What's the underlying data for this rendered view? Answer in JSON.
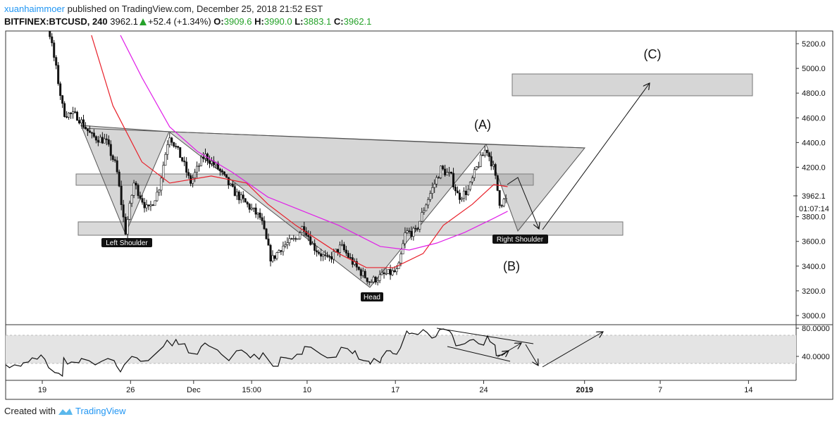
{
  "header": {
    "author": "xuanhaimmoer",
    "published": "published on TradingView.com, December 25, 2018 21:52 EST",
    "symbol": "BITFINEX:BTCUSD, 240",
    "last": "3962.1",
    "change": "+52.4 (+1.34%)",
    "o_label": "O:",
    "o": "3909.6",
    "h_label": "H:",
    "h": "3990.0",
    "l_label": "L:",
    "l": "3883.1",
    "c_label": "C:",
    "c": "3962.1"
  },
  "footer": {
    "created_with": "Created with",
    "brand": "TradingView"
  },
  "colors": {
    "up": "#ffffff",
    "down": "#111111",
    "ema": "#e8202a",
    "sma": "#e020e8",
    "zone": "#d6d6d6",
    "rsi_band": "#e4e4e4",
    "positive": "#26a22a",
    "brand": "#2196f3"
  },
  "annotations": {
    "left_shoulder": "Left Shoulder",
    "head": "Head",
    "right_shoulder": "Right Shoulder",
    "a": "(A)",
    "b": "(B)",
    "c": "(C)"
  },
  "price_marker": {
    "value": "3962.1",
    "countdown": "01:07:14"
  },
  "chart_data": {
    "type": "candlestick",
    "x_unit": "days since Nov 19 2018",
    "interval": "240",
    "price_ticks": [
      "3000.0",
      "3200.0",
      "3400.0",
      "3600.0",
      "3800.0",
      "4000.0",
      "4200.0",
      "4400.0",
      "4600.0",
      "4800.0",
      "5000.0",
      "5200.0"
    ],
    "price_range": [
      2910,
      5300
    ],
    "x_range": [
      -2.9,
      59.8
    ],
    "time_ticks": [
      {
        "day": 0,
        "label": "19"
      },
      {
        "day": 7,
        "label": "26"
      },
      {
        "day": 12,
        "label": "Dec"
      },
      {
        "day": 16.6,
        "label": "15:00"
      },
      {
        "day": 21,
        "label": "10"
      },
      {
        "day": 28,
        "label": "17"
      },
      {
        "day": 35,
        "label": "24"
      },
      {
        "day": 43,
        "label": "2019",
        "bold": true
      },
      {
        "day": 49,
        "label": "7"
      },
      {
        "day": 56,
        "label": "14"
      }
    ],
    "close_path": [
      [
        -3,
        6000
      ],
      [
        0,
        5650
      ],
      [
        0.56,
        5297
      ],
      [
        1.12,
        4983
      ],
      [
        1.68,
        4641
      ],
      [
        2.79,
        4613
      ],
      [
        3.91,
        4450
      ],
      [
        5.03,
        4414
      ],
      [
        5.87,
        4200
      ],
      [
        6.59,
        3673
      ],
      [
        7.26,
        4072
      ],
      [
        8.38,
        3844
      ],
      [
        9.22,
        4015
      ],
      [
        10.06,
        4470
      ],
      [
        11.17,
        4243
      ],
      [
        11.73,
        4072
      ],
      [
        12.85,
        4300
      ],
      [
        13.97,
        4186
      ],
      [
        15.08,
        4015
      ],
      [
        16.2,
        3900
      ],
      [
        17.32,
        3787
      ],
      [
        18.16,
        3445
      ],
      [
        19.0,
        3559
      ],
      [
        20.1,
        3616
      ],
      [
        20.7,
        3730
      ],
      [
        21.5,
        3559
      ],
      [
        22.6,
        3445
      ],
      [
        23.7,
        3559
      ],
      [
        24.9,
        3388
      ],
      [
        26.0,
        3274
      ],
      [
        27.1,
        3330
      ],
      [
        28.2,
        3359
      ],
      [
        28.8,
        3673
      ],
      [
        29.6,
        3673
      ],
      [
        30.4,
        3900
      ],
      [
        31.6,
        4186
      ],
      [
        32.4,
        4129
      ],
      [
        33.0,
        3958
      ],
      [
        33.8,
        4015
      ],
      [
        34.4,
        4186
      ],
      [
        35.2,
        4357
      ],
      [
        35.8,
        4186
      ],
      [
        36.3,
        3900
      ],
      [
        36.9,
        3962
      ]
    ],
    "series": [
      {
        "name": "EMA",
        "values": [
          [
            3.9,
            5268
          ],
          [
            5.6,
            4698
          ],
          [
            7.9,
            4243
          ],
          [
            10.1,
            4072
          ],
          [
            13.4,
            4129
          ],
          [
            16.2,
            4072
          ],
          [
            17.9,
            3900
          ],
          [
            20.1,
            3730
          ],
          [
            23.5,
            3502
          ],
          [
            25.7,
            3388
          ],
          [
            27.9,
            3388
          ],
          [
            30.2,
            3502
          ],
          [
            31.8,
            3730
          ],
          [
            34.1,
            3900
          ],
          [
            35.8,
            4060
          ],
          [
            36.9,
            4043
          ]
        ]
      },
      {
        "name": "SMA",
        "values": [
          [
            6.2,
            5268
          ],
          [
            7.9,
            4926
          ],
          [
            10.1,
            4527
          ],
          [
            12.3,
            4328
          ],
          [
            15.1,
            4157
          ],
          [
            17.9,
            3958
          ],
          [
            20.7,
            3844
          ],
          [
            23.5,
            3730
          ],
          [
            26.8,
            3559
          ],
          [
            29.1,
            3530
          ],
          [
            31.3,
            3587
          ],
          [
            33.5,
            3673
          ],
          [
            35.8,
            3787
          ],
          [
            36.9,
            3844
          ]
        ]
      }
    ],
    "rsi": {
      "ticks": [
        "40.0000",
        "80.0000"
      ],
      "band": [
        30,
        70
      ],
      "range": [
        -10,
        80
      ],
      "values": [
        [
          -2.9,
          28
        ],
        [
          -2.6,
          24
        ],
        [
          -2.2,
          28
        ],
        [
          -1.7,
          26
        ],
        [
          -1.5,
          31
        ],
        [
          -1.1,
          32
        ],
        [
          -0.8,
          38
        ],
        [
          -0.4,
          36
        ],
        [
          -0.1,
          42
        ],
        [
          0.2,
          36
        ],
        [
          0.5,
          24
        ],
        [
          1.0,
          17
        ],
        [
          1.3,
          16
        ],
        [
          1.6,
          12
        ],
        [
          1.7,
          38
        ],
        [
          2.0,
          29
        ],
        [
          2.3,
          32
        ],
        [
          2.9,
          31
        ],
        [
          3.1,
          37
        ],
        [
          3.7,
          34
        ],
        [
          4.2,
          28
        ],
        [
          4.7,
          33
        ],
        [
          5.2,
          37
        ],
        [
          5.7,
          34
        ],
        [
          5.9,
          26
        ],
        [
          6.2,
          18
        ],
        [
          6.5,
          28
        ],
        [
          7.1,
          40
        ],
        [
          7.5,
          38
        ],
        [
          7.8,
          33
        ],
        [
          8.4,
          34
        ],
        [
          9.0,
          44
        ],
        [
          9.6,
          54
        ],
        [
          9.9,
          63
        ],
        [
          10.3,
          55
        ],
        [
          10.6,
          64
        ],
        [
          10.8,
          57
        ],
        [
          11.3,
          58
        ],
        [
          11.6,
          45
        ],
        [
          12.3,
          43
        ],
        [
          12.6,
          54
        ],
        [
          12.9,
          59
        ],
        [
          13.2,
          55
        ],
        [
          13.9,
          49
        ],
        [
          14.2,
          43
        ],
        [
          14.8,
          34
        ],
        [
          15.4,
          48
        ],
        [
          15.8,
          49
        ],
        [
          16.2,
          44
        ],
        [
          16.5,
          38
        ],
        [
          16.8,
          43
        ],
        [
          17.2,
          36
        ],
        [
          17.5,
          45
        ],
        [
          17.8,
          38
        ],
        [
          18.3,
          26
        ],
        [
          18.7,
          26
        ],
        [
          18.9,
          39
        ],
        [
          19.3,
          38
        ],
        [
          19.8,
          36
        ],
        [
          20.2,
          43
        ],
        [
          20.6,
          43
        ],
        [
          20.8,
          54
        ],
        [
          21.3,
          53
        ],
        [
          21.7,
          48
        ],
        [
          22.1,
          43
        ],
        [
          22.6,
          38
        ],
        [
          23.3,
          39
        ],
        [
          23.7,
          53
        ],
        [
          24.2,
          51
        ],
        [
          24.6,
          44
        ],
        [
          24.8,
          48
        ],
        [
          25.1,
          36
        ],
        [
          25.5,
          34
        ],
        [
          25.9,
          33
        ],
        [
          26.0,
          29
        ],
        [
          26.3,
          37
        ],
        [
          26.8,
          31
        ],
        [
          26.9,
          38
        ],
        [
          27.3,
          48
        ],
        [
          27.6,
          48
        ],
        [
          27.8,
          44
        ],
        [
          28.1,
          43
        ],
        [
          28.4,
          52
        ],
        [
          28.9,
          76
        ],
        [
          29.1,
          72
        ],
        [
          29.3,
          73
        ],
        [
          29.8,
          71
        ],
        [
          30.2,
          78
        ],
        [
          30.5,
          74
        ],
        [
          30.9,
          66
        ],
        [
          31.2,
          68
        ],
        [
          31.5,
          78
        ],
        [
          31.8,
          79
        ],
        [
          32.3,
          76
        ],
        [
          32.5,
          71
        ],
        [
          32.8,
          55
        ],
        [
          33.1,
          56
        ],
        [
          33.5,
          58
        ],
        [
          33.9,
          63
        ],
        [
          34.2,
          64
        ],
        [
          34.6,
          58
        ],
        [
          35.0,
          56
        ],
        [
          35.3,
          69
        ],
        [
          35.5,
          61
        ],
        [
          35.9,
          56
        ],
        [
          36.0,
          41
        ],
        [
          36.4,
          42
        ],
        [
          36.7,
          44
        ]
      ]
    }
  }
}
